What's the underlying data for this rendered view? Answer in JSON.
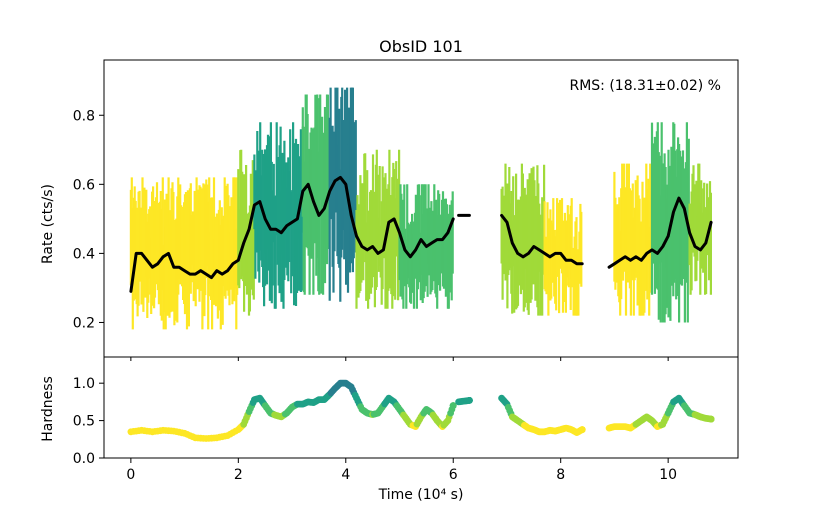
{
  "chart_data": {
    "type": "line",
    "title": "ObsID 101",
    "annotation": "RMS:  (18.31±0.02) %",
    "colormap": [
      "#fde725",
      "#a0da39",
      "#4ac16d",
      "#1fa187",
      "#277f8e"
    ],
    "smooth_color": "#000000",
    "top_panel": {
      "ylabel": "Rate (cts/s)",
      "ylim": [
        0.1,
        0.96
      ],
      "yticks": [
        0.2,
        0.4,
        0.6,
        0.8
      ],
      "ytick_labels": [
        "0.2",
        "0.4",
        "0.6",
        "0.8"
      ],
      "segments": [
        {
          "x": [
            0.0,
            0.1,
            0.2,
            0.3,
            0.4,
            0.5,
            0.6,
            0.7,
            0.8,
            0.9,
            1.0,
            1.1,
            1.2,
            1.3,
            1.4,
            1.5,
            1.6,
            1.7,
            1.8,
            1.9,
            2.0,
            2.1,
            2.2,
            2.3,
            2.4,
            2.5,
            2.6,
            2.7,
            2.8,
            2.9,
            3.0,
            3.1,
            3.2,
            3.3,
            3.4,
            3.5,
            3.6,
            3.7,
            3.8,
            3.9,
            4.0,
            4.1,
            4.2,
            4.3,
            4.4,
            4.5,
            4.6,
            4.7,
            4.8,
            4.9,
            5.0,
            5.1,
            5.2,
            5.3,
            5.4,
            5.5,
            5.6,
            5.7,
            5.8,
            5.9,
            6.0
          ],
          "y": [
            0.29,
            0.4,
            0.4,
            0.38,
            0.36,
            0.37,
            0.39,
            0.4,
            0.36,
            0.36,
            0.35,
            0.34,
            0.34,
            0.35,
            0.34,
            0.33,
            0.35,
            0.34,
            0.35,
            0.37,
            0.38,
            0.43,
            0.47,
            0.54,
            0.55,
            0.5,
            0.47,
            0.47,
            0.46,
            0.48,
            0.49,
            0.5,
            0.58,
            0.6,
            0.55,
            0.51,
            0.53,
            0.58,
            0.61,
            0.62,
            0.6,
            0.51,
            0.45,
            0.42,
            0.41,
            0.42,
            0.4,
            0.41,
            0.49,
            0.5,
            0.46,
            0.41,
            0.39,
            0.41,
            0.44,
            0.42,
            0.43,
            0.44,
            0.44,
            0.46,
            0.5
          ]
        },
        {
          "x": [
            6.1,
            6.3
          ],
          "y": [
            0.51,
            0.51
          ]
        },
        {
          "x": [
            6.9,
            7.0,
            7.1,
            7.2,
            7.3,
            7.4,
            7.5,
            7.6,
            7.7,
            7.8,
            7.9,
            8.0,
            8.1,
            8.2,
            8.3,
            8.4
          ],
          "y": [
            0.51,
            0.49,
            0.43,
            0.4,
            0.39,
            0.4,
            0.42,
            0.41,
            0.4,
            0.39,
            0.4,
            0.4,
            0.38,
            0.38,
            0.37,
            0.37
          ]
        },
        {
          "x": [
            8.9,
            9.0,
            9.1,
            9.2,
            9.3,
            9.4,
            9.5,
            9.6,
            9.7,
            9.8,
            9.9,
            10.0,
            10.1,
            10.2,
            10.3,
            10.4,
            10.5,
            10.6,
            10.7,
            10.8
          ],
          "y": [
            0.36,
            0.37,
            0.38,
            0.39,
            0.38,
            0.39,
            0.38,
            0.4,
            0.41,
            0.4,
            0.42,
            0.45,
            0.52,
            0.56,
            0.53,
            0.46,
            0.42,
            0.41,
            0.43,
            0.49
          ]
        }
      ],
      "noise_envelope": [
        {
          "x0": 0.0,
          "x1": 2.0,
          "low": 0.18,
          "high": 0.62,
          "color_index": 0
        },
        {
          "x0": 2.0,
          "x1": 2.3,
          "low": 0.22,
          "high": 0.7,
          "color_index": 1
        },
        {
          "x0": 2.3,
          "x1": 3.2,
          "low": 0.24,
          "high": 0.78,
          "color_index": 3
        },
        {
          "x0": 3.2,
          "x1": 3.7,
          "low": 0.28,
          "high": 0.86,
          "color_index": 2
        },
        {
          "x0": 3.7,
          "x1": 4.2,
          "low": 0.26,
          "high": 0.88,
          "color_index": 4
        },
        {
          "x0": 4.2,
          "x1": 5.0,
          "low": 0.24,
          "high": 0.7,
          "color_index": 1
        },
        {
          "x0": 5.0,
          "x1": 6.0,
          "low": 0.24,
          "high": 0.6,
          "color_index": 2
        },
        {
          "x0": 6.9,
          "x1": 7.7,
          "low": 0.22,
          "high": 0.66,
          "color_index": 1
        },
        {
          "x0": 7.7,
          "x1": 8.4,
          "low": 0.22,
          "high": 0.56,
          "color_index": 0
        },
        {
          "x0": 9.0,
          "x1": 9.7,
          "low": 0.22,
          "high": 0.66,
          "color_index": 0
        },
        {
          "x0": 9.7,
          "x1": 10.4,
          "low": 0.2,
          "high": 0.78,
          "color_index": 2
        },
        {
          "x0": 10.4,
          "x1": 10.8,
          "low": 0.28,
          "high": 0.66,
          "color_index": 1
        }
      ]
    },
    "bottom_panel": {
      "ylabel": "Hardness",
      "ylim": [
        0.0,
        1.35
      ],
      "yticks": [
        0.0,
        0.5,
        1.0
      ],
      "ytick_labels": [
        "0.0",
        "0.5",
        "1.0"
      ],
      "segments": [
        {
          "x": [
            0.0,
            0.2,
            0.4,
            0.6,
            0.8,
            1.0,
            1.2,
            1.4,
            1.6,
            1.8,
            2.0,
            2.1,
            2.2,
            2.3,
            2.4,
            2.5,
            2.6,
            2.7,
            2.8,
            2.9,
            3.0,
            3.1,
            3.2,
            3.3,
            3.4,
            3.5,
            3.6,
            3.7,
            3.8,
            3.9,
            4.0,
            4.1,
            4.2,
            4.3,
            4.4,
            4.5,
            4.6,
            4.7,
            4.8,
            4.9,
            5.0,
            5.1,
            5.2,
            5.3,
            5.4,
            5.5,
            5.6,
            5.7,
            5.8,
            5.9,
            6.0
          ],
          "y": [
            0.35,
            0.37,
            0.35,
            0.37,
            0.36,
            0.33,
            0.27,
            0.26,
            0.27,
            0.3,
            0.38,
            0.45,
            0.62,
            0.78,
            0.8,
            0.7,
            0.6,
            0.57,
            0.55,
            0.6,
            0.68,
            0.72,
            0.72,
            0.75,
            0.74,
            0.78,
            0.78,
            0.85,
            0.93,
            1.0,
            1.0,
            0.95,
            0.8,
            0.65,
            0.6,
            0.58,
            0.6,
            0.7,
            0.8,
            0.75,
            0.65,
            0.55,
            0.45,
            0.42,
            0.55,
            0.65,
            0.6,
            0.5,
            0.42,
            0.5,
            0.7
          ]
        },
        {
          "x": [
            6.1,
            6.2,
            6.3
          ],
          "y": [
            0.75,
            0.76,
            0.77
          ]
        },
        {
          "x": [
            6.9,
            7.0,
            7.1,
            7.2,
            7.3,
            7.4,
            7.5,
            7.6,
            7.7,
            7.8,
            7.9,
            8.0,
            8.1,
            8.2,
            8.3,
            8.4
          ],
          "y": [
            0.8,
            0.72,
            0.55,
            0.5,
            0.45,
            0.4,
            0.38,
            0.35,
            0.35,
            0.37,
            0.36,
            0.38,
            0.4,
            0.38,
            0.34,
            0.38
          ]
        },
        {
          "x": [
            8.9,
            9.0,
            9.1,
            9.2,
            9.3,
            9.4,
            9.5,
            9.6,
            9.7,
            9.8,
            9.9,
            10.0,
            10.1,
            10.2,
            10.3,
            10.4,
            10.5,
            10.6,
            10.7,
            10.8
          ],
          "y": [
            0.4,
            0.42,
            0.42,
            0.42,
            0.4,
            0.45,
            0.5,
            0.55,
            0.5,
            0.42,
            0.45,
            0.6,
            0.75,
            0.8,
            0.7,
            0.6,
            0.58,
            0.55,
            0.53,
            0.52
          ]
        }
      ]
    },
    "x": {
      "xlabel": "Time (10⁴ s)",
      "xlim": [
        -0.5,
        11.3
      ],
      "xticks": [
        0,
        2,
        4,
        6,
        8,
        10
      ],
      "xtick_labels": [
        "0",
        "2",
        "4",
        "6",
        "8",
        "10"
      ]
    }
  }
}
